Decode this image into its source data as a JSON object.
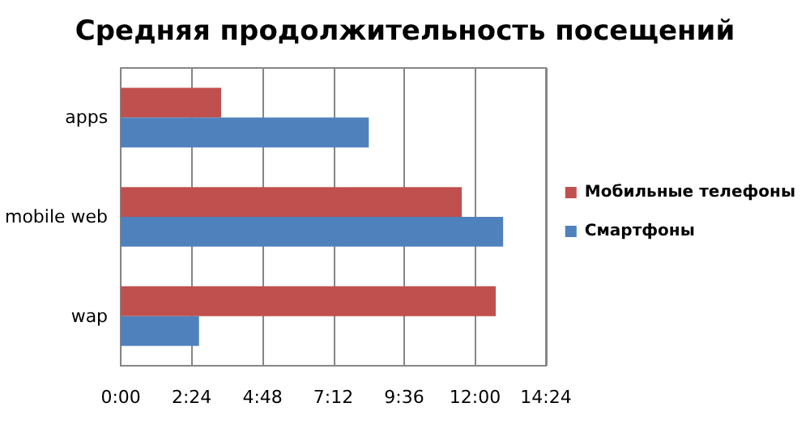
{
  "chart_data": {
    "type": "bar",
    "orientation": "horizontal",
    "title": "Средняя продолжительность посещений",
    "categories": [
      "apps",
      "mobile web",
      "wap"
    ],
    "series": [
      {
        "name": "Мобильные телефоны",
        "color": "#c0504d",
        "values": [
          3.4,
          11.55,
          12.7
        ]
      },
      {
        "name": "Смартфоны",
        "color": "#4f81bd",
        "values": [
          8.4,
          12.95,
          2.65
        ]
      }
    ],
    "xlim": [
      0,
      14.4
    ],
    "xticks": [
      {
        "value": 0,
        "label": "0:00"
      },
      {
        "value": 2.4,
        "label": "2:24"
      },
      {
        "value": 4.8,
        "label": "4:48"
      },
      {
        "value": 7.2,
        "label": "7:12"
      },
      {
        "value": 9.6,
        "label": "9:36"
      },
      {
        "value": 12,
        "label": "12:00"
      },
      {
        "value": 14.4,
        "label": "14:24"
      }
    ],
    "grid": "x",
    "legend": "right"
  }
}
